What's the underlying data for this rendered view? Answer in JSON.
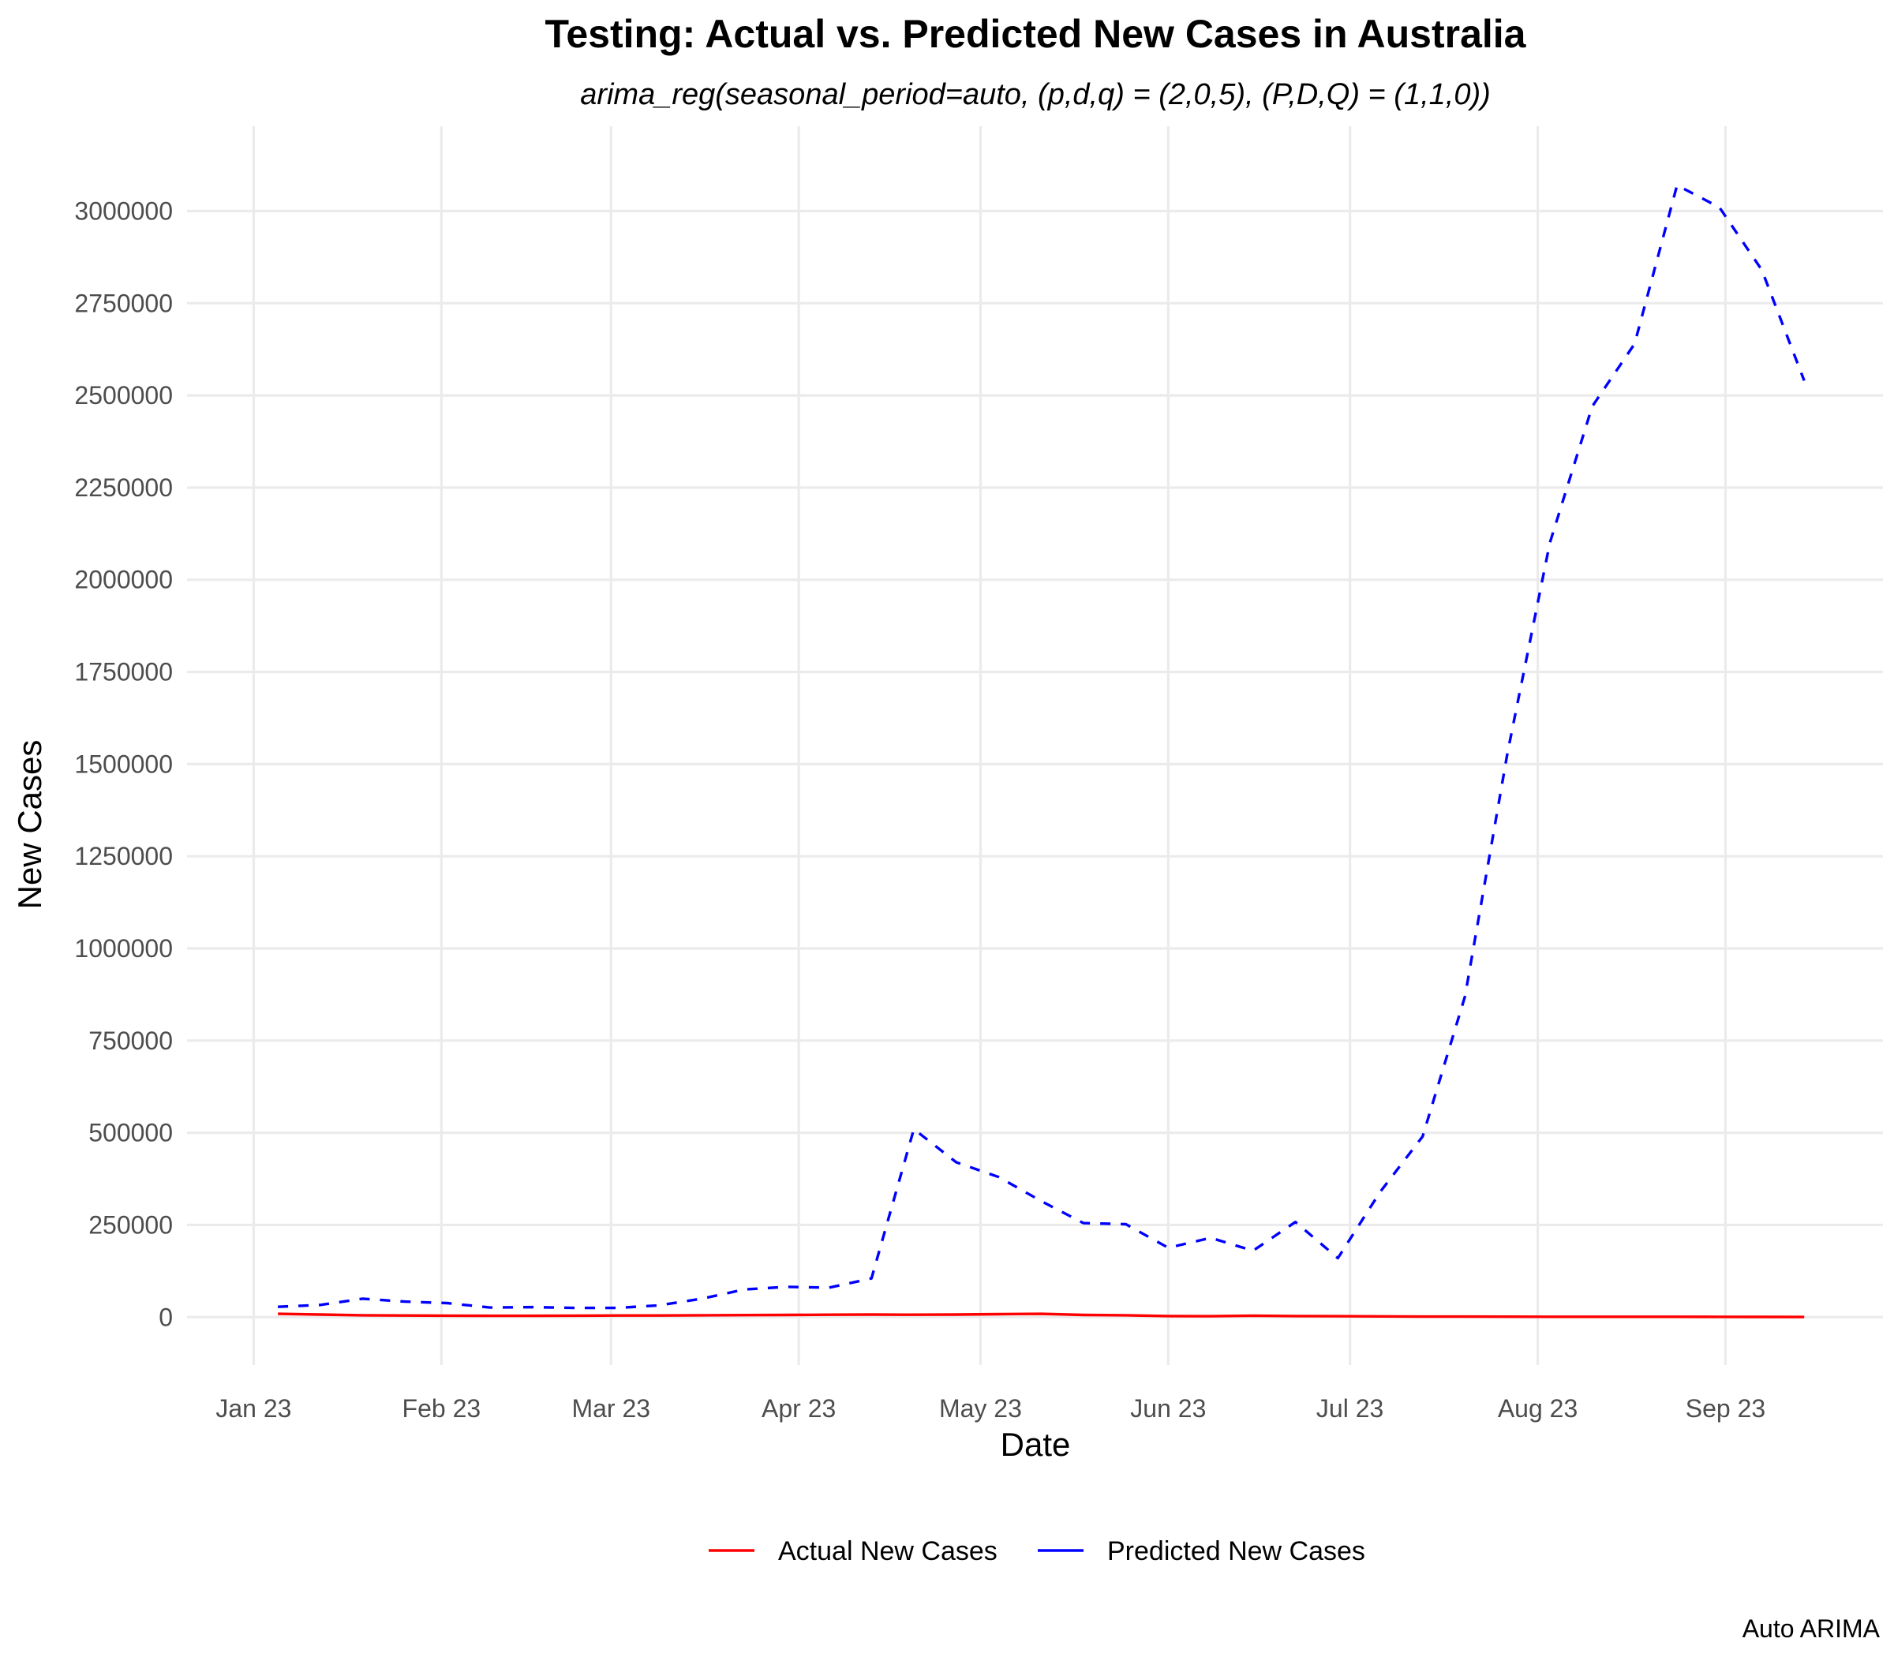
{
  "chart_data": {
    "type": "line",
    "title": "Testing: Actual vs. Predicted New Cases in Australia",
    "subtitle": "arima_reg(seasonal_period=auto, (p,d,q) = (2,0,5), (P,D,Q) = (1,1,0))",
    "xlabel": "Date",
    "ylabel": "New Cases",
    "caption": "Auto ARIMA",
    "x_ticks": [
      {
        "date": "2023-01-01",
        "label": "Jan 23"
      },
      {
        "date": "2023-02-01",
        "label": "Feb 23"
      },
      {
        "date": "2023-03-01",
        "label": "Mar 23"
      },
      {
        "date": "2023-04-01",
        "label": "Apr 23"
      },
      {
        "date": "2023-05-01",
        "label": "May 23"
      },
      {
        "date": "2023-06-01",
        "label": "Jun 23"
      },
      {
        "date": "2023-07-01",
        "label": "Jul 23"
      },
      {
        "date": "2023-08-01",
        "label": "Aug 23"
      },
      {
        "date": "2023-09-01",
        "label": "Sep 23"
      }
    ],
    "y_ticks": [
      0,
      250000,
      500000,
      750000,
      1000000,
      1250000,
      1500000,
      1750000,
      2000000,
      2250000,
      2500000,
      2750000,
      3000000
    ],
    "xlim": [
      "2022-12-21",
      "2023-09-27"
    ],
    "ylim": [
      -130000,
      3230000
    ],
    "grid": true,
    "legend_position": "bottom",
    "colors": {
      "actual": "#ff0000",
      "predicted": "#0000ff"
    },
    "x": [
      "2023-01-05",
      "2023-01-12",
      "2023-01-19",
      "2023-01-26",
      "2023-02-02",
      "2023-02-09",
      "2023-02-16",
      "2023-02-23",
      "2023-03-02",
      "2023-03-09",
      "2023-03-16",
      "2023-03-23",
      "2023-03-30",
      "2023-04-06",
      "2023-04-13",
      "2023-04-20",
      "2023-04-27",
      "2023-05-04",
      "2023-05-11",
      "2023-05-18",
      "2023-05-25",
      "2023-06-01",
      "2023-06-08",
      "2023-06-15",
      "2023-06-22",
      "2023-06-29",
      "2023-07-06",
      "2023-07-13",
      "2023-07-20",
      "2023-07-27",
      "2023-08-03",
      "2023-08-10",
      "2023-08-17",
      "2023-08-24",
      "2023-08-31",
      "2023-09-07",
      "2023-09-14"
    ],
    "series": [
      {
        "name": "Actual New Cases",
        "style": "solid",
        "values": [
          9000,
          7000,
          5000,
          4500,
          4000,
          3500,
          3500,
          4000,
          4500,
          4500,
          5000,
          5500,
          6000,
          6500,
          7000,
          6500,
          7000,
          8000,
          9000,
          6000,
          5000,
          3000,
          2500,
          4000,
          3000,
          2500,
          2000,
          1500,
          1500,
          1200,
          1000,
          1000,
          900,
          900,
          800,
          500,
          300
        ]
      },
      {
        "name": "Predicted New Cases",
        "style": "dashed",
        "values": [
          28000,
          33000,
          50000,
          42000,
          38000,
          26000,
          27000,
          25000,
          25000,
          32000,
          50000,
          75000,
          82000,
          80000,
          105000,
          510000,
          420000,
          380000,
          315000,
          255000,
          252000,
          188000,
          215000,
          180000,
          258000,
          160000,
          340000,
          490000,
          870000,
          1530000,
          2100000,
          2470000,
          2640000,
          3070000,
          3010000,
          2840000,
          2540000
        ]
      }
    ]
  }
}
